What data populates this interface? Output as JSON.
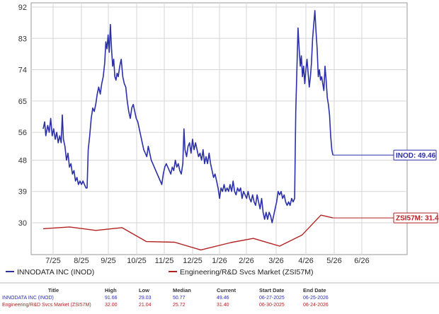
{
  "chart_data": {
    "type": "line",
    "y_ticks": [
      92,
      83,
      74,
      65,
      56,
      48,
      39,
      30
    ],
    "ylim": [
      21,
      92
    ],
    "x_ticks": [
      "7/25",
      "8/25",
      "9/25",
      "10/25",
      "11/25",
      "12/25",
      "1/26",
      "2/26",
      "3/26",
      "4/26",
      "5/26",
      "6/26"
    ],
    "grid": true,
    "series": [
      {
        "name": "INNODATA INC (INOD)",
        "color": "#2b2fa8",
        "callout": "INOD: 49.46",
        "points": [
          [
            0.0,
            57
          ],
          [
            0.4,
            59
          ],
          [
            0.7,
            55
          ],
          [
            1.2,
            58
          ],
          [
            1.6,
            56
          ],
          [
            2.0,
            60
          ],
          [
            2.4,
            55
          ],
          [
            2.8,
            57
          ],
          [
            3.2,
            54
          ],
          [
            3.6,
            56
          ],
          [
            4.0,
            53
          ],
          [
            4.4,
            55
          ],
          [
            4.8,
            53
          ],
          [
            5.1,
            61
          ],
          [
            5.4,
            54
          ],
          [
            5.8,
            52
          ],
          [
            6.2,
            48
          ],
          [
            6.6,
            50
          ],
          [
            7.0,
            46
          ],
          [
            7.4,
            47
          ],
          [
            7.8,
            44
          ],
          [
            8.2,
            45
          ],
          [
            8.6,
            42
          ],
          [
            9.0,
            43
          ],
          [
            9.4,
            41
          ],
          [
            9.8,
            42
          ],
          [
            10.2,
            41
          ],
          [
            10.6,
            42
          ],
          [
            11.0,
            41
          ],
          [
            11.4,
            40
          ],
          [
            11.7,
            40
          ],
          [
            12.0,
            51
          ],
          [
            12.4,
            55
          ],
          [
            12.8,
            60
          ],
          [
            13.2,
            63
          ],
          [
            13.6,
            62
          ],
          [
            14.0,
            64
          ],
          [
            14.4,
            67
          ],
          [
            14.8,
            69
          ],
          [
            15.2,
            67
          ],
          [
            15.6,
            70
          ],
          [
            16.0,
            72
          ],
          [
            16.4,
            76
          ],
          [
            16.7,
            82
          ],
          [
            17.0,
            80
          ],
          [
            17.3,
            84
          ],
          [
            17.6,
            79
          ],
          [
            17.9,
            87
          ],
          [
            18.2,
            80
          ],
          [
            18.5,
            75
          ],
          [
            18.8,
            77
          ],
          [
            19.1,
            72
          ],
          [
            19.4,
            71
          ],
          [
            19.7,
            73
          ],
          [
            20.0,
            72
          ],
          [
            20.4,
            75
          ],
          [
            20.8,
            77
          ],
          [
            21.2,
            72
          ],
          [
            21.6,
            70
          ],
          [
            22.0,
            69
          ],
          [
            22.4,
            65
          ],
          [
            22.8,
            62
          ],
          [
            23.2,
            60
          ],
          [
            23.6,
            63
          ],
          [
            24.0,
            64
          ],
          [
            24.4,
            62
          ],
          [
            24.8,
            60
          ],
          [
            25.2,
            59
          ],
          [
            25.6,
            57
          ],
          [
            26.0,
            55
          ],
          [
            26.4,
            53
          ],
          [
            26.8,
            51
          ],
          [
            27.2,
            50
          ],
          [
            27.6,
            49
          ],
          [
            28.0,
            52
          ],
          [
            28.4,
            50
          ],
          [
            28.8,
            48
          ],
          [
            29.2,
            47
          ],
          [
            29.6,
            46
          ],
          [
            30.0,
            45
          ],
          [
            30.4,
            44
          ],
          [
            30.8,
            43
          ],
          [
            31.2,
            42
          ],
          [
            31.6,
            41
          ],
          [
            32.0,
            44
          ],
          [
            32.4,
            46
          ],
          [
            32.8,
            47
          ],
          [
            33.2,
            46
          ],
          [
            33.6,
            45
          ],
          [
            34.0,
            44
          ],
          [
            34.4,
            46
          ],
          [
            34.8,
            45
          ],
          [
            35.2,
            48
          ],
          [
            35.6,
            46
          ],
          [
            36.0,
            47
          ],
          [
            36.4,
            45
          ],
          [
            36.8,
            44
          ],
          [
            37.2,
            47
          ],
          [
            37.5,
            57
          ],
          [
            37.8,
            51
          ],
          [
            38.2,
            49
          ],
          [
            38.6,
            52
          ],
          [
            39.0,
            53
          ],
          [
            39.4,
            50
          ],
          [
            39.8,
            54
          ],
          [
            40.2,
            51
          ],
          [
            40.6,
            53
          ],
          [
            41.0,
            51
          ],
          [
            41.4,
            49
          ],
          [
            41.8,
            50
          ],
          [
            42.2,
            48
          ],
          [
            42.6,
            51
          ],
          [
            43.0,
            47
          ],
          [
            43.4,
            49
          ],
          [
            43.8,
            47
          ],
          [
            44.2,
            50
          ],
          [
            44.6,
            47
          ],
          [
            45.0,
            45
          ],
          [
            45.4,
            43
          ],
          [
            45.8,
            44
          ],
          [
            46.2,
            42
          ],
          [
            46.6,
            40
          ],
          [
            47.0,
            37
          ],
          [
            47.4,
            40
          ],
          [
            47.8,
            39
          ],
          [
            48.2,
            41
          ],
          [
            48.6,
            39
          ],
          [
            49.0,
            40
          ],
          [
            49.4,
            39
          ],
          [
            49.8,
            41
          ],
          [
            50.2,
            39
          ],
          [
            50.6,
            42
          ],
          [
            51.0,
            39
          ],
          [
            51.4,
            38
          ],
          [
            51.8,
            40
          ],
          [
            52.2,
            39
          ],
          [
            52.6,
            40
          ],
          [
            53.0,
            37
          ],
          [
            53.4,
            39
          ],
          [
            53.8,
            38
          ],
          [
            54.2,
            37
          ],
          [
            54.6,
            39
          ],
          [
            55.0,
            37
          ],
          [
            55.4,
            36
          ],
          [
            55.8,
            38
          ],
          [
            56.2,
            36
          ],
          [
            56.6,
            35
          ],
          [
            57.0,
            38
          ],
          [
            57.4,
            36
          ],
          [
            57.8,
            34
          ],
          [
            58.2,
            37
          ],
          [
            58.6,
            33
          ],
          [
            59.0,
            31
          ],
          [
            59.4,
            33
          ],
          [
            59.8,
            31
          ],
          [
            60.2,
            33
          ],
          [
            60.6,
            32
          ],
          [
            61.0,
            30
          ],
          [
            61.4,
            32
          ],
          [
            61.8,
            34
          ],
          [
            62.2,
            36
          ],
          [
            62.6,
            39
          ],
          [
            63.0,
            38
          ],
          [
            63.4,
            39
          ],
          [
            63.8,
            37
          ],
          [
            64.2,
            38
          ],
          [
            64.6,
            36
          ],
          [
            65.0,
            35
          ],
          [
            65.4,
            36
          ],
          [
            65.8,
            35
          ],
          [
            66.2,
            37
          ],
          [
            66.6,
            36
          ],
          [
            67.0,
            37
          ],
          [
            67.3,
            62
          ],
          [
            67.6,
            74
          ],
          [
            67.9,
            86
          ],
          [
            68.2,
            80
          ],
          [
            68.5,
            75
          ],
          [
            68.8,
            78
          ],
          [
            69.1,
            72
          ],
          [
            69.4,
            75
          ],
          [
            69.7,
            70
          ],
          [
            70.0,
            74
          ],
          [
            70.3,
            77
          ],
          [
            70.6,
            73
          ],
          [
            70.9,
            69
          ],
          [
            71.2,
            72
          ],
          [
            71.5,
            76
          ],
          [
            71.8,
            83
          ],
          [
            72.1,
            87
          ],
          [
            72.4,
            91
          ],
          [
            72.7,
            85
          ],
          [
            73.0,
            80
          ],
          [
            73.3,
            72
          ],
          [
            73.6,
            74
          ],
          [
            73.9,
            71
          ],
          [
            74.2,
            72
          ],
          [
            74.5,
            70
          ],
          [
            74.8,
            68
          ],
          [
            75.1,
            75
          ],
          [
            75.4,
            71
          ],
          [
            75.7,
            66
          ],
          [
            76.0,
            64
          ],
          [
            76.3,
            61
          ],
          [
            76.6,
            55
          ],
          [
            76.9,
            51
          ],
          [
            77.2,
            49.46
          ]
        ]
      },
      {
        "name": "Engineering/R&D Svcs Market (ZSI57M)",
        "color": "#b22222",
        "callout": "ZSI57M: 31.4",
        "points": [
          [
            0.0,
            28.3
          ],
          [
            7.0,
            28.8
          ],
          [
            14.0,
            27.8
          ],
          [
            21.0,
            28.6
          ],
          [
            27.5,
            24.6
          ],
          [
            35.0,
            24.4
          ],
          [
            42.0,
            22.2
          ],
          [
            50.0,
            24.3
          ],
          [
            56.0,
            25.5
          ],
          [
            63.0,
            23.3
          ],
          [
            69.0,
            26.5
          ],
          [
            74.0,
            32.2
          ],
          [
            77.2,
            31.4
          ]
        ]
      }
    ]
  },
  "legend": {
    "series1": "INNODATA INC (INOD)",
    "series2": "Engineering/R&D Svcs Market (ZSI57M)"
  },
  "table": {
    "headers": [
      "Title",
      "High",
      "Low",
      "Median",
      "Current",
      "Start Date",
      "End Date"
    ],
    "rows": [
      [
        "INNODATA INC (INOD)",
        "91.66",
        "29.03",
        "50.77",
        "49.46",
        "06-27-2025",
        "06-25-2026"
      ],
      [
        "Engineering/R&D Svcs Market (ZSI57M)",
        "32.00",
        "21.04",
        "25.72",
        "31.40",
        "06-30-2025",
        "06-24-2026"
      ]
    ]
  }
}
